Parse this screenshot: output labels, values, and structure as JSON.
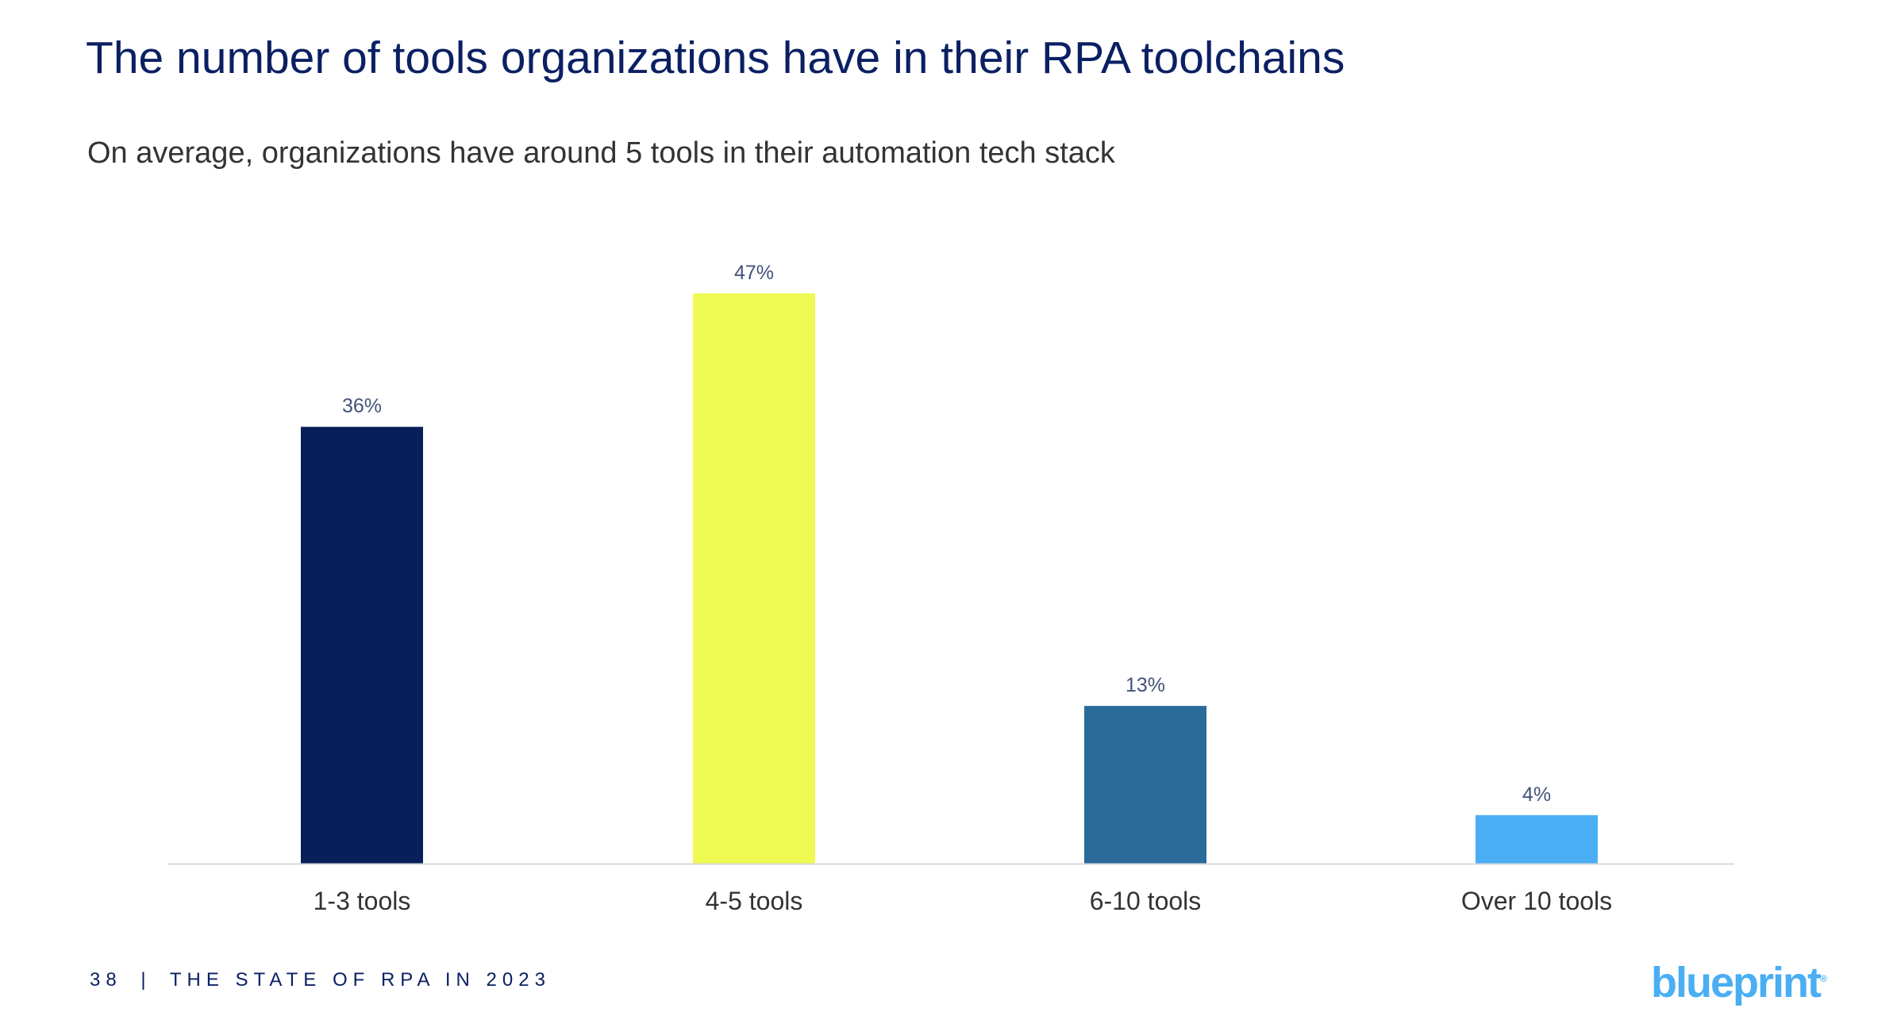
{
  "title": "The number of tools organizations have in their RPA toolchains",
  "subtitle": "On average, organizations have around 5 tools in their automation tech stack",
  "footer": {
    "page": "38",
    "separator": "|",
    "text": "THE STATE OF RPA IN 2023"
  },
  "logo": "blueprint",
  "chart_data": {
    "type": "bar",
    "categories": [
      "1-3 tools",
      "4-5 tools",
      "6-10 tools",
      "Over 10 tools"
    ],
    "values": [
      36,
      47,
      13,
      4
    ],
    "data_labels": [
      "36%",
      "47%",
      "13%",
      "4%"
    ],
    "colors": [
      "#08205a",
      "#eefa52",
      "#2b6b9a",
      "#4aaef5"
    ],
    "label_color": "#44527a",
    "ylim": [
      0,
      50
    ],
    "grid": false,
    "legend": "none"
  }
}
